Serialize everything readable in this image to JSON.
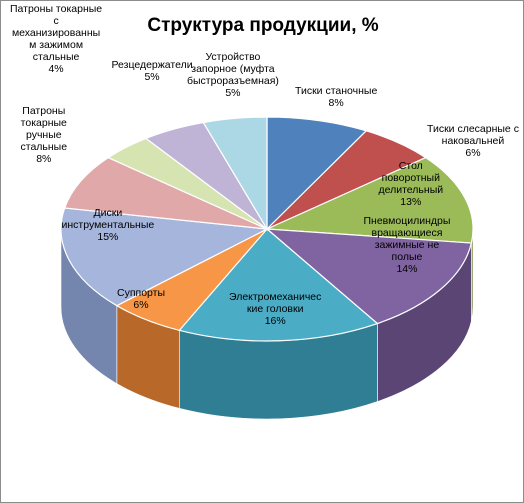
{
  "chart_data": {
    "type": "pie",
    "title": "Структура продукции, %",
    "slices": [
      {
        "label": "Тиски станочные",
        "percent_label": "8%",
        "value": 8,
        "color": "#4f81bd",
        "side": "#36588a",
        "label_lines": [
          "Тиски станочные",
          "8%"
        ]
      },
      {
        "label": "Тиски слесарные с наковальней",
        "percent_label": "6%",
        "value": 6,
        "color": "#c0504d",
        "side": "#8c3533",
        "label_lines": [
          "Тиски слесарные с",
          "наковальней",
          "6%"
        ]
      },
      {
        "label": "Стол поворотный делительный",
        "percent_label": "13%",
        "value": 13,
        "color": "#9bbb59",
        "side": "#6e8a3a",
        "label_lines": [
          "Стол",
          "поворотный",
          "делительный",
          "13%"
        ]
      },
      {
        "label": "Пневмоцилиндры вращающиеся зажимные не полые",
        "percent_label": "14%",
        "value": 14,
        "color": "#8064a2",
        "side": "#5a4574",
        "label_lines": [
          "Пневмоцилиндры",
          "вращающиеся",
          "зажимные не",
          "полые",
          "14%"
        ]
      },
      {
        "label": "Электромеханические головки",
        "percent_label": "16%",
        "value": 16,
        "color": "#4bacc6",
        "side": "#2f7e93",
        "label_lines": [
          "Электромеханичес",
          "кие головки",
          "16%"
        ]
      },
      {
        "label": "Суппорты",
        "percent_label": "6%",
        "value": 6,
        "color": "#f79646",
        "side": "#b8692a",
        "label_lines": [
          "Суппорты",
          "6%"
        ]
      },
      {
        "label": "Диски инструментальные",
        "percent_label": "15%",
        "value": 15,
        "color": "#a5b5db",
        "side": "#7486ad",
        "label_lines": [
          "Диски",
          "инструментальные",
          "15%"
        ]
      },
      {
        "label": "Патроны токарные ручные стальные",
        "percent_label": "8%",
        "value": 8,
        "color": "#e0a8a8",
        "side": "#ad7c7c",
        "label_lines": [
          "Патроны",
          "токарные",
          "ручные",
          "стальные",
          "8%"
        ]
      },
      {
        "label": "Патроны токарные с механизированным зажимом стальные",
        "percent_label": "4%",
        "value": 4,
        "color": "#d6e4b1",
        "side": "#a6b583",
        "label_lines": [
          "Патроны токарные",
          "с",
          "механизированны",
          "м зажимом",
          "стальные",
          "4%"
        ]
      },
      {
        "label": "Резцедержатели",
        "percent_label": "5%",
        "value": 5,
        "color": "#bfb3d6",
        "side": "#8f84a8",
        "label_lines": [
          "Резцедержатели",
          "5%"
        ]
      },
      {
        "label": "Устройство запорное (муфта быстроразъемная)",
        "percent_label": "5%",
        "value": 5,
        "color": "#acd8e6",
        "side": "#7daab8",
        "label_lines": [
          "Устройство",
          "запорное (муфта",
          "быстроразъемная)",
          "5%"
        ]
      }
    ]
  }
}
